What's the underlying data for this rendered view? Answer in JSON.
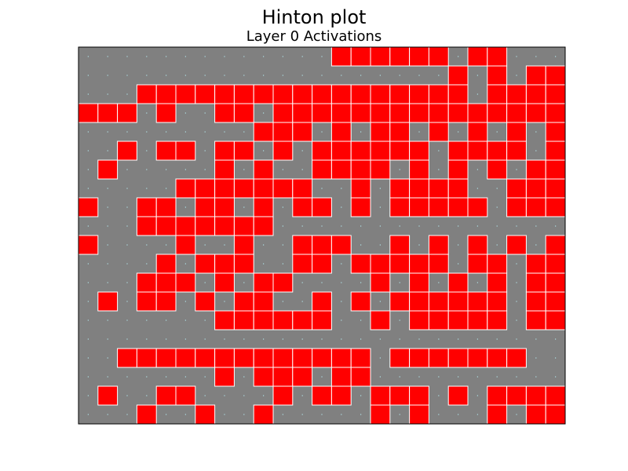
{
  "chart_data": {
    "type": "heatmap",
    "title": "Hinton plot",
    "subtitle": "Layer 0 Activations",
    "xlabel": "",
    "ylabel": "",
    "grid": false,
    "rows": 20,
    "cols": 25,
    "colors": {
      "background": "#808080",
      "positive": "#ff0000",
      "cell_border": "#ffffff",
      "dot": "#b0e0e6"
    },
    "matrix": [
      [
        0,
        0,
        0,
        0,
        0,
        0,
        0,
        0,
        0,
        0,
        0,
        0,
        0,
        1,
        1,
        1,
        1,
        1,
        1,
        0,
        1,
        1,
        0,
        0,
        0
      ],
      [
        0,
        0,
        0,
        0,
        0,
        0,
        0,
        0,
        0,
        0,
        0,
        0,
        0,
        0,
        0,
        0,
        0,
        0,
        0,
        1,
        0,
        1,
        0,
        1,
        1
      ],
      [
        0,
        0,
        0,
        1,
        1,
        1,
        1,
        1,
        1,
        1,
        1,
        1,
        1,
        1,
        1,
        1,
        1,
        1,
        1,
        1,
        0,
        1,
        1,
        1,
        1
      ],
      [
        1,
        1,
        1,
        0,
        1,
        0,
        0,
        1,
        1,
        0,
        1,
        1,
        1,
        1,
        1,
        1,
        1,
        1,
        1,
        1,
        1,
        1,
        1,
        1,
        1
      ],
      [
        0,
        0,
        0,
        0,
        0,
        0,
        0,
        0,
        0,
        1,
        1,
        1,
        0,
        1,
        0,
        1,
        1,
        0,
        1,
        0,
        1,
        0,
        1,
        0,
        1
      ],
      [
        0,
        0,
        1,
        0,
        1,
        1,
        0,
        1,
        1,
        0,
        1,
        0,
        1,
        1,
        1,
        1,
        1,
        1,
        0,
        1,
        1,
        1,
        1,
        0,
        1
      ],
      [
        0,
        1,
        0,
        0,
        0,
        0,
        0,
        1,
        0,
        1,
        0,
        0,
        1,
        1,
        1,
        1,
        0,
        1,
        0,
        1,
        0,
        1,
        0,
        1,
        1
      ],
      [
        0,
        0,
        0,
        0,
        0,
        1,
        1,
        1,
        1,
        1,
        1,
        1,
        0,
        0,
        1,
        0,
        1,
        1,
        1,
        1,
        0,
        0,
        1,
        1,
        1
      ],
      [
        1,
        0,
        0,
        1,
        1,
        0,
        1,
        1,
        0,
        1,
        0,
        1,
        1,
        0,
        1,
        0,
        1,
        1,
        1,
        1,
        1,
        0,
        1,
        1,
        1
      ],
      [
        0,
        0,
        0,
        1,
        1,
        1,
        1,
        1,
        1,
        1,
        0,
        0,
        0,
        0,
        0,
        0,
        0,
        0,
        0,
        0,
        0,
        0,
        0,
        0,
        0
      ],
      [
        1,
        0,
        0,
        0,
        0,
        1,
        0,
        0,
        1,
        0,
        0,
        1,
        1,
        1,
        0,
        0,
        1,
        0,
        1,
        0,
        1,
        0,
        1,
        0,
        1
      ],
      [
        0,
        0,
        0,
        0,
        1,
        0,
        1,
        1,
        1,
        0,
        0,
        1,
        1,
        0,
        1,
        1,
        1,
        1,
        1,
        0,
        1,
        1,
        0,
        1,
        1
      ],
      [
        0,
        0,
        0,
        1,
        1,
        1,
        0,
        1,
        0,
        1,
        1,
        0,
        0,
        0,
        0,
        1,
        0,
        1,
        0,
        1,
        0,
        1,
        0,
        1,
        1
      ],
      [
        0,
        1,
        0,
        1,
        1,
        0,
        1,
        0,
        1,
        1,
        0,
        0,
        1,
        0,
        1,
        0,
        1,
        1,
        1,
        1,
        1,
        1,
        0,
        1,
        1
      ],
      [
        0,
        0,
        0,
        0,
        0,
        0,
        0,
        1,
        1,
        1,
        1,
        1,
        1,
        0,
        0,
        1,
        0,
        1,
        1,
        1,
        1,
        1,
        0,
        1,
        1
      ],
      [
        0,
        0,
        0,
        0,
        0,
        0,
        0,
        0,
        0,
        0,
        0,
        0,
        0,
        0,
        0,
        0,
        0,
        0,
        0,
        0,
        0,
        0,
        0,
        0,
        0
      ],
      [
        0,
        0,
        1,
        1,
        1,
        1,
        1,
        1,
        1,
        1,
        1,
        1,
        1,
        1,
        1,
        0,
        1,
        1,
        1,
        1,
        1,
        1,
        1,
        0,
        0
      ],
      [
        0,
        0,
        0,
        0,
        0,
        0,
        0,
        1,
        0,
        1,
        1,
        1,
        0,
        1,
        1,
        0,
        0,
        0,
        0,
        0,
        0,
        0,
        0,
        0,
        0
      ],
      [
        0,
        1,
        0,
        0,
        1,
        1,
        0,
        0,
        0,
        0,
        1,
        0,
        1,
        1,
        0,
        1,
        1,
        1,
        0,
        1,
        0,
        1,
        1,
        1,
        1
      ],
      [
        0,
        0,
        0,
        1,
        0,
        0,
        1,
        0,
        0,
        1,
        0,
        0,
        0,
        0,
        0,
        1,
        0,
        1,
        0,
        0,
        0,
        1,
        0,
        1,
        1
      ]
    ]
  }
}
